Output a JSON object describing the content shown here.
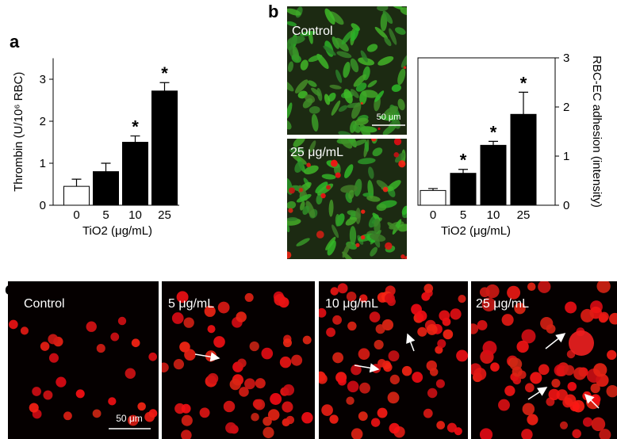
{
  "figure": {
    "panel_a": "a",
    "panel_b": "b",
    "panel_c": "c",
    "images_b": [
      {
        "label": "Control",
        "scale_bar": "50 μm"
      },
      {
        "label": "25 μg/mL"
      }
    ],
    "images_c": [
      {
        "label": "Control",
        "scale_bar": "50 μm"
      },
      {
        "label": "5 μg/mL"
      },
      {
        "label": "10 μg/mL"
      },
      {
        "label": "25 μg/mL"
      }
    ]
  },
  "chart_data": [
    {
      "type": "bar",
      "categories": [
        "0",
        "5",
        "10",
        "25"
      ],
      "values": [
        0.45,
        0.8,
        1.5,
        2.72
      ],
      "errors": [
        0.17,
        0.2,
        0.15,
        0.2
      ],
      "colors": [
        "#ffffff",
        "#000000",
        "#000000",
        "#000000"
      ],
      "annotations": [
        null,
        null,
        "*",
        "*"
      ],
      "xlabel": "TiO2 (μg/mL)",
      "ylabel": "Thrombin (U/10⁶ RBC)",
      "ylim": [
        0,
        3.5
      ],
      "yticks": [
        0,
        1,
        2,
        3
      ],
      "y_axis_side": "left"
    },
    {
      "type": "bar",
      "categories": [
        "0",
        "5",
        "10",
        "25"
      ],
      "values": [
        0.3,
        0.65,
        1.22,
        1.85
      ],
      "errors": [
        0.04,
        0.08,
        0.08,
        0.45
      ],
      "colors": [
        "#ffffff",
        "#000000",
        "#000000",
        "#000000"
      ],
      "annotations": [
        null,
        "*",
        "*",
        "*"
      ],
      "xlabel": "TiO2 (μg/mL)",
      "ylabel": "RBC-EC adhesion (intensity)",
      "ylim": [
        0,
        3
      ],
      "yticks": [
        0,
        1,
        2,
        3
      ],
      "y_axis_side": "right"
    }
  ]
}
